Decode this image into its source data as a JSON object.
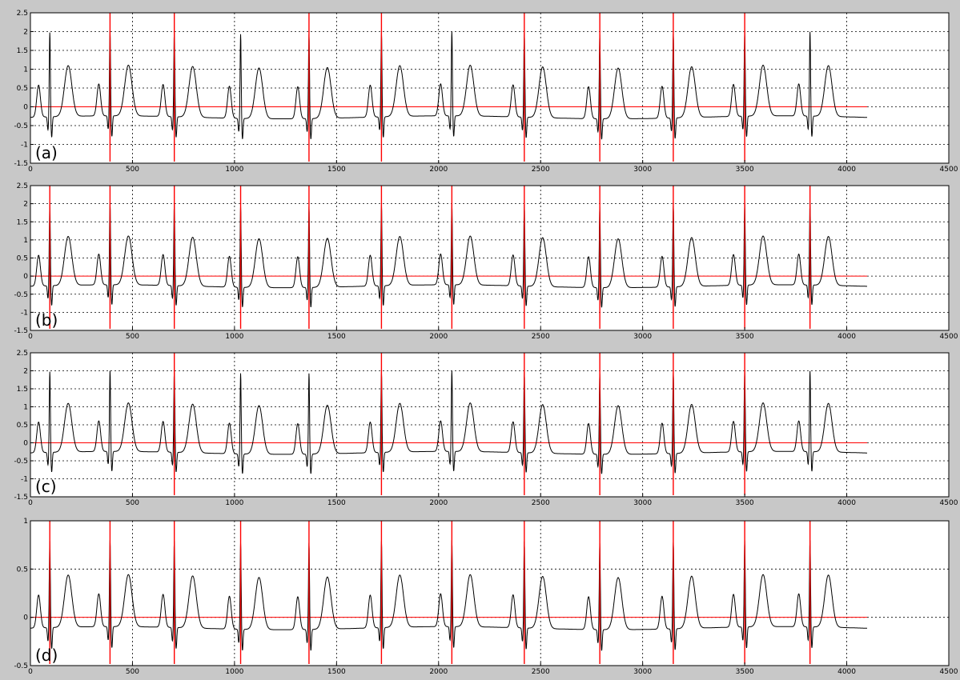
{
  "colors": {
    "background": "#c8c8c8",
    "axes_face": "#ffffff",
    "signal": "#000000",
    "markers": "#ff0000",
    "baseline": "#ff0000",
    "grid": "#000000"
  },
  "chart_data": [
    {
      "type": "line",
      "panel_label": "(a)",
      "xlim": [
        0,
        4500
      ],
      "ylim": [
        -1.5,
        2.5
      ],
      "xticks": [
        0,
        500,
        1000,
        1500,
        2000,
        2500,
        3000,
        3500,
        4000,
        4500
      ],
      "yticks": [
        -1.5,
        -1,
        -0.5,
        0,
        0.5,
        1,
        1.5,
        2,
        2.5
      ],
      "xtick_labels": [
        "0",
        "500",
        "1000",
        "1500",
        "2000",
        "2500",
        "3000",
        "3500",
        "4000",
        "4500"
      ],
      "ytick_labels": [
        "-1.5",
        "-1",
        "-0.5",
        "0",
        "0.5",
        "1",
        "1.5",
        "2",
        "2.5"
      ],
      "grid": true,
      "scale": 1.0,
      "beat_positions": [
        95,
        390,
        705,
        1030,
        1365,
        1720,
        2065,
        2420,
        2790,
        3150,
        3500,
        3820
      ],
      "markers": [
        390,
        705,
        1365,
        1720,
        2420,
        2790,
        3150,
        3500
      ],
      "baseline": [
        0,
        4100,
        0
      ]
    },
    {
      "type": "line",
      "panel_label": "(b)",
      "xlim": [
        0,
        4500
      ],
      "ylim": [
        -1.5,
        2.5
      ],
      "xticks": [
        0,
        500,
        1000,
        1500,
        2000,
        2500,
        3000,
        3500,
        4000,
        4500
      ],
      "yticks": [
        -1.5,
        -1,
        -0.5,
        0,
        0.5,
        1,
        1.5,
        2,
        2.5
      ],
      "xtick_labels": [
        "0",
        "500",
        "1000",
        "1500",
        "2000",
        "2500",
        "3000",
        "3500",
        "4000",
        "4500"
      ],
      "ytick_labels": [
        "-1.5",
        "-1",
        "-0.5",
        "0",
        "0.5",
        "1",
        "1.5",
        "2",
        "2.5"
      ],
      "grid": true,
      "scale": 1.0,
      "beat_positions": [
        95,
        390,
        705,
        1030,
        1365,
        1720,
        2065,
        2420,
        2790,
        3150,
        3500,
        3820
      ],
      "markers": [
        95,
        390,
        705,
        1030,
        1365,
        1720,
        2065,
        2420,
        2790,
        3150,
        3500,
        3820
      ],
      "baseline": [
        0,
        4100,
        0
      ]
    },
    {
      "type": "line",
      "panel_label": "(c)",
      "xlim": [
        0,
        4500
      ],
      "ylim": [
        -1.5,
        2.5
      ],
      "xticks": [
        0,
        500,
        1000,
        1500,
        2000,
        2500,
        3000,
        3500,
        4000,
        4500
      ],
      "yticks": [
        -1.5,
        -1,
        -0.5,
        0,
        0.5,
        1,
        1.5,
        2,
        2.5
      ],
      "xtick_labels": [
        "0",
        "500",
        "1000",
        "1500",
        "2000",
        "2500",
        "3000",
        "3500",
        "4000",
        "4500"
      ],
      "ytick_labels": [
        "-1.5",
        "-1",
        "-0.5",
        "0",
        "0.5",
        "1",
        "1.5",
        "2",
        "2.5"
      ],
      "grid": true,
      "scale": 1.0,
      "beat_positions": [
        95,
        390,
        705,
        1030,
        1365,
        1720,
        2065,
        2420,
        2790,
        3150,
        3500,
        3820
      ],
      "markers": [
        705,
        1720,
        2420,
        2790,
        3150,
        3500
      ],
      "baseline": [
        0,
        4100,
        0
      ]
    },
    {
      "type": "line",
      "panel_label": "(d)",
      "xlim": [
        0,
        4500
      ],
      "ylim": [
        -0.5,
        1
      ],
      "xticks": [
        0,
        500,
        1000,
        1500,
        2000,
        2500,
        3000,
        3500,
        4000,
        4500
      ],
      "yticks": [
        -0.5,
        0,
        0.5,
        1
      ],
      "xtick_labels": [
        "0",
        "500",
        "1000",
        "1500",
        "2000",
        "2500",
        "3000",
        "3500",
        "4000",
        "4500"
      ],
      "ytick_labels": [
        "-0.5",
        "0",
        "0.5",
        "1"
      ],
      "grid": true,
      "scale": 0.4,
      "beat_positions": [
        95,
        390,
        705,
        1030,
        1365,
        1720,
        2065,
        2420,
        2790,
        3150,
        3500,
        3820
      ],
      "markers": [
        95,
        390,
        705,
        1030,
        1365,
        1720,
        2065,
        2420,
        2790,
        3150,
        3500,
        3820
      ],
      "baseline": [
        0,
        4100,
        0
      ]
    }
  ]
}
